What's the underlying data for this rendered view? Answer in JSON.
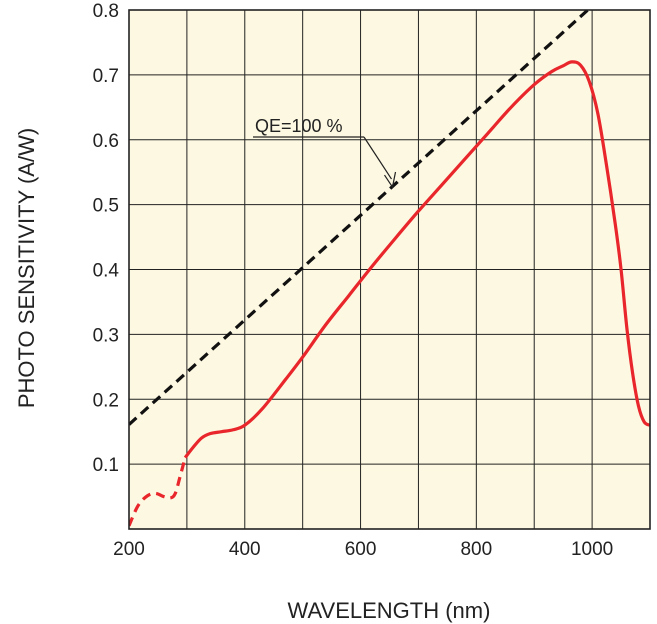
{
  "chart_data": {
    "type": "line",
    "title": "",
    "xlabel": "WAVELENGTH (nm)",
    "ylabel": "PHOTO SENSITIVITY (A/W)",
    "xlim": [
      200,
      1100
    ],
    "ylim": [
      0,
      0.8
    ],
    "xticks": [
      200,
      400,
      600,
      800,
      1000
    ],
    "yticks": [
      0.1,
      0.2,
      0.3,
      0.4,
      0.5,
      0.6,
      0.7,
      0.8
    ],
    "ytick_labels": [
      "0.1",
      "0.2",
      "0.3",
      "0.4",
      "0.5",
      "0.6",
      "0.7",
      "0.8"
    ],
    "grid": true,
    "series": [
      {
        "name": "",
        "style": "dashed",
        "color": "#e8262b",
        "x": [
          200,
          215,
          230,
          245,
          260,
          272,
          280,
          288,
          297
        ],
        "y": [
          0.005,
          0.035,
          0.05,
          0.055,
          0.05,
          0.048,
          0.055,
          0.08,
          0.11
        ]
      },
      {
        "name": "",
        "style": "solid",
        "color": "#e8262b",
        "x": [
          297,
          310,
          325,
          340,
          360,
          380,
          400,
          430,
          470,
          500,
          540,
          580,
          620,
          660,
          700,
          740,
          780,
          820,
          860,
          900,
          930,
          950,
          965,
          980,
          995,
          1010,
          1025,
          1040,
          1050,
          1060,
          1070,
          1080,
          1090,
          1100
        ],
        "y": [
          0.11,
          0.125,
          0.14,
          0.147,
          0.15,
          0.153,
          0.16,
          0.185,
          0.23,
          0.265,
          0.315,
          0.36,
          0.405,
          0.448,
          0.49,
          0.53,
          0.57,
          0.61,
          0.65,
          0.685,
          0.705,
          0.714,
          0.72,
          0.715,
          0.69,
          0.64,
          0.56,
          0.47,
          0.4,
          0.31,
          0.24,
          0.19,
          0.165,
          0.16
        ]
      },
      {
        "name": "QE=100 %",
        "style": "dashed",
        "color": "#111111",
        "x": [
          200,
          1000
        ],
        "y": [
          0.161,
          0.806
        ]
      }
    ],
    "annotations": [
      {
        "text": "QE=100 %",
        "target_x": 650,
        "target_y": 0.524
      }
    ]
  },
  "colors": {
    "plot_background": "#fdf8e1",
    "grid": "#222222",
    "curve": "#e8262b",
    "qe_line": "#111111"
  }
}
